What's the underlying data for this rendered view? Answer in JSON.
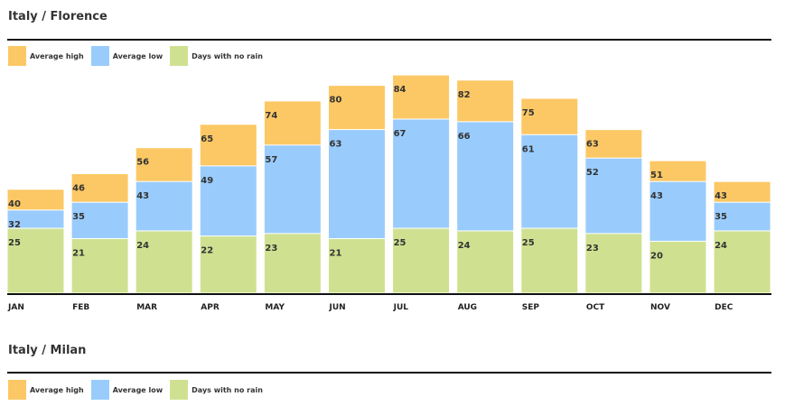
{
  "colors": {
    "average_high": "#fcc865",
    "average_low": "#99ccfc",
    "days_no_rain": "#cfe191"
  },
  "legend": {
    "average_high": "Average high",
    "average_low": "Average low",
    "days_no_rain": "Days with no rain"
  },
  "sections": [
    {
      "title": "Italy / Florence"
    },
    {
      "title": "Italy / Milan"
    }
  ],
  "chart_data": {
    "type": "bar",
    "title": "Italy / Florence",
    "categories": [
      "JAN",
      "FEB",
      "MAR",
      "APR",
      "MAY",
      "JUN",
      "JUL",
      "AUG",
      "SEP",
      "OCT",
      "NOV",
      "DEC"
    ],
    "series": [
      {
        "name": "Average high",
        "values": [
          40,
          46,
          56,
          65,
          74,
          80,
          84,
          82,
          75,
          63,
          51,
          43
        ]
      },
      {
        "name": "Average low",
        "values": [
          32,
          35,
          43,
          49,
          57,
          63,
          67,
          66,
          61,
          52,
          43,
          35
        ]
      },
      {
        "name": "Days with no rain",
        "values": [
          25,
          21,
          24,
          22,
          23,
          21,
          25,
          24,
          25,
          23,
          20,
          24
        ]
      }
    ],
    "legend_position": "top-left",
    "grid": false
  }
}
